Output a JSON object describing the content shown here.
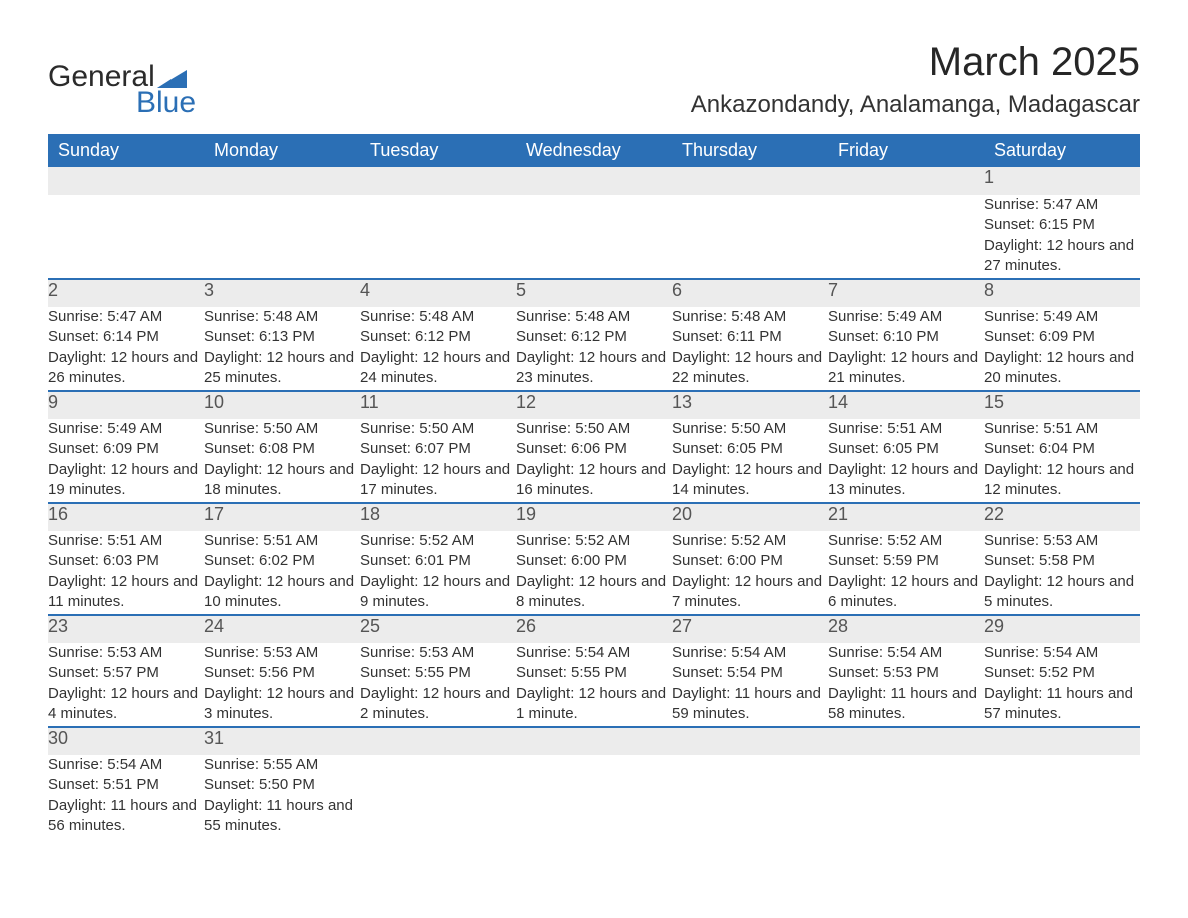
{
  "logo": {
    "text1": "General",
    "text2": "Blue"
  },
  "title": "March 2025",
  "location": "Ankazondandy, Analamanga, Madagascar",
  "day_headers": [
    "Sunday",
    "Monday",
    "Tuesday",
    "Wednesday",
    "Thursday",
    "Friday",
    "Saturday"
  ],
  "colors": {
    "header_bg": "#2b6fb5",
    "header_text": "#ffffff",
    "daynum_bg": "#ececec",
    "daynum_border": "#2b6fb5",
    "body_text": "#333333",
    "logo_accent": "#2b6fb5"
  },
  "weeks": [
    [
      {
        "num": "",
        "lines": []
      },
      {
        "num": "",
        "lines": []
      },
      {
        "num": "",
        "lines": []
      },
      {
        "num": "",
        "lines": []
      },
      {
        "num": "",
        "lines": []
      },
      {
        "num": "",
        "lines": []
      },
      {
        "num": "1",
        "lines": [
          "Sunrise: 5:47 AM",
          "Sunset: 6:15 PM",
          "Daylight: 12 hours and 27 minutes."
        ]
      }
    ],
    [
      {
        "num": "2",
        "lines": [
          "Sunrise: 5:47 AM",
          "Sunset: 6:14 PM",
          "Daylight: 12 hours and 26 minutes."
        ]
      },
      {
        "num": "3",
        "lines": [
          "Sunrise: 5:48 AM",
          "Sunset: 6:13 PM",
          "Daylight: 12 hours and 25 minutes."
        ]
      },
      {
        "num": "4",
        "lines": [
          "Sunrise: 5:48 AM",
          "Sunset: 6:12 PM",
          "Daylight: 12 hours and 24 minutes."
        ]
      },
      {
        "num": "5",
        "lines": [
          "Sunrise: 5:48 AM",
          "Sunset: 6:12 PM",
          "Daylight: 12 hours and 23 minutes."
        ]
      },
      {
        "num": "6",
        "lines": [
          "Sunrise: 5:48 AM",
          "Sunset: 6:11 PM",
          "Daylight: 12 hours and 22 minutes."
        ]
      },
      {
        "num": "7",
        "lines": [
          "Sunrise: 5:49 AM",
          "Sunset: 6:10 PM",
          "Daylight: 12 hours and 21 minutes."
        ]
      },
      {
        "num": "8",
        "lines": [
          "Sunrise: 5:49 AM",
          "Sunset: 6:09 PM",
          "Daylight: 12 hours and 20 minutes."
        ]
      }
    ],
    [
      {
        "num": "9",
        "lines": [
          "Sunrise: 5:49 AM",
          "Sunset: 6:09 PM",
          "Daylight: 12 hours and 19 minutes."
        ]
      },
      {
        "num": "10",
        "lines": [
          "Sunrise: 5:50 AM",
          "Sunset: 6:08 PM",
          "Daylight: 12 hours and 18 minutes."
        ]
      },
      {
        "num": "11",
        "lines": [
          "Sunrise: 5:50 AM",
          "Sunset: 6:07 PM",
          "Daylight: 12 hours and 17 minutes."
        ]
      },
      {
        "num": "12",
        "lines": [
          "Sunrise: 5:50 AM",
          "Sunset: 6:06 PM",
          "Daylight: 12 hours and 16 minutes."
        ]
      },
      {
        "num": "13",
        "lines": [
          "Sunrise: 5:50 AM",
          "Sunset: 6:05 PM",
          "Daylight: 12 hours and 14 minutes."
        ]
      },
      {
        "num": "14",
        "lines": [
          "Sunrise: 5:51 AM",
          "Sunset: 6:05 PM",
          "Daylight: 12 hours and 13 minutes."
        ]
      },
      {
        "num": "15",
        "lines": [
          "Sunrise: 5:51 AM",
          "Sunset: 6:04 PM",
          "Daylight: 12 hours and 12 minutes."
        ]
      }
    ],
    [
      {
        "num": "16",
        "lines": [
          "Sunrise: 5:51 AM",
          "Sunset: 6:03 PM",
          "Daylight: 12 hours and 11 minutes."
        ]
      },
      {
        "num": "17",
        "lines": [
          "Sunrise: 5:51 AM",
          "Sunset: 6:02 PM",
          "Daylight: 12 hours and 10 minutes."
        ]
      },
      {
        "num": "18",
        "lines": [
          "Sunrise: 5:52 AM",
          "Sunset: 6:01 PM",
          "Daylight: 12 hours and 9 minutes."
        ]
      },
      {
        "num": "19",
        "lines": [
          "Sunrise: 5:52 AM",
          "Sunset: 6:00 PM",
          "Daylight: 12 hours and 8 minutes."
        ]
      },
      {
        "num": "20",
        "lines": [
          "Sunrise: 5:52 AM",
          "Sunset: 6:00 PM",
          "Daylight: 12 hours and 7 minutes."
        ]
      },
      {
        "num": "21",
        "lines": [
          "Sunrise: 5:52 AM",
          "Sunset: 5:59 PM",
          "Daylight: 12 hours and 6 minutes."
        ]
      },
      {
        "num": "22",
        "lines": [
          "Sunrise: 5:53 AM",
          "Sunset: 5:58 PM",
          "Daylight: 12 hours and 5 minutes."
        ]
      }
    ],
    [
      {
        "num": "23",
        "lines": [
          "Sunrise: 5:53 AM",
          "Sunset: 5:57 PM",
          "Daylight: 12 hours and 4 minutes."
        ]
      },
      {
        "num": "24",
        "lines": [
          "Sunrise: 5:53 AM",
          "Sunset: 5:56 PM",
          "Daylight: 12 hours and 3 minutes."
        ]
      },
      {
        "num": "25",
        "lines": [
          "Sunrise: 5:53 AM",
          "Sunset: 5:55 PM",
          "Daylight: 12 hours and 2 minutes."
        ]
      },
      {
        "num": "26",
        "lines": [
          "Sunrise: 5:54 AM",
          "Sunset: 5:55 PM",
          "Daylight: 12 hours and 1 minute."
        ]
      },
      {
        "num": "27",
        "lines": [
          "Sunrise: 5:54 AM",
          "Sunset: 5:54 PM",
          "Daylight: 11 hours and 59 minutes."
        ]
      },
      {
        "num": "28",
        "lines": [
          "Sunrise: 5:54 AM",
          "Sunset: 5:53 PM",
          "Daylight: 11 hours and 58 minutes."
        ]
      },
      {
        "num": "29",
        "lines": [
          "Sunrise: 5:54 AM",
          "Sunset: 5:52 PM",
          "Daylight: 11 hours and 57 minutes."
        ]
      }
    ],
    [
      {
        "num": "30",
        "lines": [
          "Sunrise: 5:54 AM",
          "Sunset: 5:51 PM",
          "Daylight: 11 hours and 56 minutes."
        ]
      },
      {
        "num": "31",
        "lines": [
          "Sunrise: 5:55 AM",
          "Sunset: 5:50 PM",
          "Daylight: 11 hours and 55 minutes."
        ]
      },
      {
        "num": "",
        "lines": []
      },
      {
        "num": "",
        "lines": []
      },
      {
        "num": "",
        "lines": []
      },
      {
        "num": "",
        "lines": []
      },
      {
        "num": "",
        "lines": []
      }
    ]
  ]
}
